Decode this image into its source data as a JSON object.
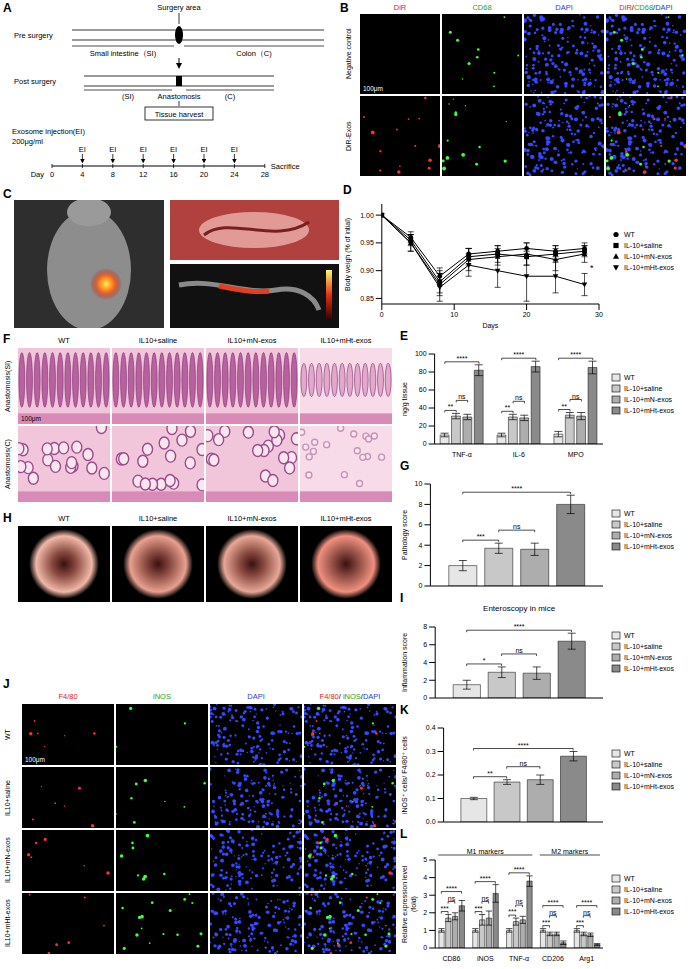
{
  "panels": {
    "A": {
      "label": "A",
      "surgery_area": "Surgery area",
      "pre_surgery": "Pre surgery",
      "small_intestine": "Small intestine（SI)",
      "colon": "Colon（C)",
      "post_surgery": "Post surgery",
      "si": "(SI)",
      "c": "(C)",
      "anastomosis": "Anastomosis",
      "tissue_harvest": "Tissue harvest",
      "injection": "Exosome injection(EI)",
      "dose": "200μg/ml",
      "ei": "EI",
      "day_label": "Day",
      "days": [
        0,
        4,
        8,
        12,
        16,
        20,
        24,
        28
      ],
      "sacrifice": "Sacrifice"
    },
    "B": {
      "label": "B",
      "columns": [
        "DiR",
        "CD68",
        "DAPI",
        "DiR/CD68/DAPI"
      ],
      "rows": [
        "Negative control",
        "DiR-Exos"
      ],
      "scale_bar": "100μm"
    },
    "C": {
      "label": "C"
    },
    "F": {
      "label": "F",
      "columns": [
        "WT",
        "IL10+saline",
        "IL10+mN-exos",
        "IL10+mHt-exos"
      ],
      "rows": [
        "Anastomosis(SI)",
        "Anastomosis(C)"
      ],
      "scale_bar": "100μm"
    },
    "H": {
      "label": "H",
      "columns": [
        "WT",
        "IL10+saline",
        "IL10+mN-exos",
        "IL10+mHt-exos"
      ]
    },
    "J": {
      "label": "J",
      "columns": [
        "F4/80",
        "iNOS",
        "DAPI",
        "F4/80/ iNOS/DAPI"
      ],
      "rows": [
        "WT",
        "IL10+saline",
        "IL10+mN-exos",
        "IL10+mHt-exos"
      ],
      "scale_bar": "100μm"
    }
  },
  "chart_data": [
    {
      "panel": "D",
      "type": "line",
      "x_label": "Days",
      "y_label": "Body weigh (% of intial)",
      "x": [
        0,
        4,
        8,
        12,
        16,
        20,
        24,
        28
      ],
      "xlim": [
        0,
        30
      ],
      "xticks": [
        0,
        10,
        20,
        30
      ],
      "ylim": [
        0.84,
        1.02
      ],
      "yticks": [
        0.85,
        {
          "value": 0.9,
          "label": "0.90"
        },
        0.95,
        {
          "value": 1,
          "label": "1.00"
        }
      ],
      "legend": "right",
      "series": [
        {
          "name": "WT",
          "color": "#000000",
          "marker": "circle",
          "line_style": "solid",
          "values": [
            1.0,
            0.96,
            0.89,
            0.93,
            0.935,
            0.94,
            0.935,
            0.94
          ],
          "errors": [
            0,
            0.01,
            0.015,
            0.01,
            0.01,
            0.01,
            0.01,
            0.01
          ]
        },
        {
          "name": "IL-10+saline",
          "color": "#000000",
          "marker": "square",
          "line_style": "solid",
          "values": [
            1.0,
            0.955,
            0.88,
            0.925,
            0.93,
            0.925,
            0.93,
            0.935
          ],
          "errors": [
            0,
            0.01,
            0.02,
            0.015,
            0.015,
            0.015,
            0.015,
            0.01
          ]
        },
        {
          "name": "IL-10+mN-exos",
          "color": "#000000",
          "marker": "triangle",
          "line_style": "solid",
          "values": [
            1.0,
            0.95,
            0.875,
            0.92,
            0.925,
            0.93,
            0.92,
            0.93
          ],
          "errors": [
            0,
            0.015,
            0.02,
            0.02,
            0.015,
            0.02,
            0.02,
            0.015
          ]
        },
        {
          "name": "IL-10+mHt-exos",
          "color": "#000000",
          "marker": "triangle_down",
          "line_style": "solid",
          "values": [
            1.0,
            0.95,
            0.87,
            0.91,
            0.9,
            0.89,
            0.89,
            0.875
          ],
          "errors": [
            0,
            0.015,
            0.025,
            0.02,
            0.03,
            0.045,
            0.03,
            0.02
          ]
        }
      ],
      "annotations": [
        {
          "x": 29,
          "y": 0.905,
          "text": "*"
        }
      ]
    },
    {
      "panel": "E",
      "type": "bar",
      "y_label": "ng/g tissue",
      "categories": [
        "TNF-α",
        "IL-6",
        "MPO"
      ],
      "ylim": [
        0,
        100
      ],
      "yticks": [
        0,
        20,
        40,
        60,
        80,
        100
      ],
      "legend": "right",
      "series": [
        {
          "name": "WT",
          "color": "#e6e6e6",
          "values": [
            10,
            10,
            11
          ],
          "errors": [
            2,
            2,
            3
          ]
        },
        {
          "name": "IL-10+saline",
          "color": "#c8c8c8",
          "values": [
            31,
            30,
            32
          ],
          "errors": [
            3,
            3,
            3
          ]
        },
        {
          "name": "IL-10+mN-exos",
          "color": "#adadad",
          "values": [
            30,
            29,
            31
          ],
          "errors": [
            3,
            3,
            4
          ]
        },
        {
          "name": "IL-10+mHt-exos",
          "color": "#8a8a8a",
          "values": [
            82,
            86,
            85
          ],
          "errors": [
            6,
            6,
            7
          ]
        }
      ],
      "comparisons": [
        {
          "category": "TNF-α",
          "pair": [
            "WT",
            "IL-10+saline"
          ],
          "text": "**"
        },
        {
          "category": "TNF-α",
          "pair": [
            "IL-10+saline",
            "IL-10+mN-exos"
          ],
          "text": "ns"
        },
        {
          "category": "TNF-α",
          "pair": [
            "WT",
            "IL-10+mHt-exos"
          ],
          "text": "****"
        },
        {
          "category": "IL-6",
          "pair": [
            "WT",
            "IL-10+saline"
          ],
          "text": "**"
        },
        {
          "category": "IL-6",
          "pair": [
            "IL-10+saline",
            "IL-10+mN-exos"
          ],
          "text": "ns"
        },
        {
          "category": "IL-6",
          "pair": [
            "WT",
            "IL-10+mHt-exos"
          ],
          "text": "****"
        },
        {
          "category": "MPO",
          "pair": [
            "WT",
            "IL-10+saline"
          ],
          "text": "**"
        },
        {
          "category": "MPO",
          "pair": [
            "IL-10+saline",
            "IL-10+mN-exos"
          ],
          "text": "ns"
        },
        {
          "category": "MPO",
          "pair": [
            "WT",
            "IL-10+mHt-exos"
          ],
          "text": "****"
        }
      ]
    },
    {
      "panel": "G",
      "type": "bar",
      "y_label": "Pathology score",
      "tick_labels": "y",
      "ylim": [
        0,
        10
      ],
      "yticks": [
        0,
        2,
        4,
        6,
        8,
        10
      ],
      "legend": "right",
      "series": [
        {
          "name": "WT",
          "color": "#e6e6e6",
          "values": [
            2.0
          ],
          "errors": [
            0.5
          ]
        },
        {
          "name": "IL-10+saline",
          "color": "#c8c8c8",
          "values": [
            3.7
          ],
          "errors": [
            0.5
          ]
        },
        {
          "name": "IL-10+mN-exos",
          "color": "#adadad",
          "values": [
            3.6
          ],
          "errors": [
            0.6
          ]
        },
        {
          "name": "IL-10+mHt-exos",
          "color": "#8a8a8a",
          "values": [
            8.0
          ],
          "errors": [
            0.9
          ]
        }
      ],
      "comparisons": [
        {
          "pair": [
            "WT",
            "IL-10+saline"
          ],
          "text": "***"
        },
        {
          "pair": [
            "IL-10+saline",
            "IL-10+mN-exos"
          ],
          "text": "ns"
        },
        {
          "pair": [
            "WT",
            "IL-10+mHt-exos"
          ],
          "text": "****"
        }
      ]
    },
    {
      "panel": "I",
      "type": "bar",
      "title": "Enteroscopy in mice",
      "y_label": "Inflammation score",
      "tick_labels": "y",
      "ylim": [
        0,
        8
      ],
      "yticks": [
        0,
        2,
        4,
        6,
        8
      ],
      "legend": "right",
      "series": [
        {
          "name": "WT",
          "color": "#e6e6e6",
          "values": [
            1.5
          ],
          "errors": [
            0.5
          ]
        },
        {
          "name": "IL-10+saline",
          "color": "#c8c8c8",
          "values": [
            2.9
          ],
          "errors": [
            0.6
          ]
        },
        {
          "name": "IL-10+mN-exos",
          "color": "#adadad",
          "values": [
            2.8
          ],
          "errors": [
            0.7
          ]
        },
        {
          "name": "IL-10+mHt-exos",
          "color": "#8a8a8a",
          "values": [
            6.4
          ],
          "errors": [
            0.9
          ]
        }
      ],
      "comparisons": [
        {
          "pair": [
            "WT",
            "IL-10+saline"
          ],
          "text": "*"
        },
        {
          "pair": [
            "IL-10+saline",
            "IL-10+mN-exos"
          ],
          "text": "ns"
        },
        {
          "pair": [
            "WT",
            "IL-10+mHt-exos"
          ],
          "text": "****"
        }
      ]
    },
    {
      "panel": "K",
      "type": "bar",
      "y_label": "iNOS⁺ cells/ F4/80⁺ cells",
      "tick_labels": "y",
      "ylim": [
        0,
        0.4
      ],
      "yticks": [
        {
          "value": 0,
          "label": "0.0"
        },
        0.1,
        0.2,
        0.3,
        0.4
      ],
      "legend": "right",
      "series": [
        {
          "name": "WT",
          "color": "#e6e6e6",
          "values": [
            0.1
          ],
          "errors": [
            0.005
          ]
        },
        {
          "name": "IL-10+saline",
          "color": "#c8c8c8",
          "values": [
            0.17
          ],
          "errors": [
            0.01
          ]
        },
        {
          "name": "IL-10+mN-exos",
          "color": "#adadad",
          "values": [
            0.18
          ],
          "errors": [
            0.02
          ]
        },
        {
          "name": "IL-10+mHt-exos",
          "color": "#8a8a8a",
          "values": [
            0.28
          ],
          "errors": [
            0.02
          ]
        }
      ],
      "comparisons": [
        {
          "pair": [
            "WT",
            "IL-10+saline"
          ],
          "text": "**"
        },
        {
          "pair": [
            "IL-10+saline",
            "IL-10+mN-exos"
          ],
          "text": "ns"
        },
        {
          "pair": [
            "WT",
            "IL-10+mHt-exos"
          ],
          "text": "****"
        }
      ]
    },
    {
      "panel": "L",
      "type": "bar",
      "y_label": "Relative expression level (fold)",
      "categories": [
        "CD86",
        "iNOS",
        "TNF-α",
        "CD206",
        "Arg1"
      ],
      "ylim": [
        0,
        5
      ],
      "yticks": [
        0,
        1,
        2,
        3,
        4,
        5
      ],
      "legend": "right",
      "groups": [
        {
          "text": "M1 markers",
          "categories": [
            "CD86",
            "iNOS",
            "TNF-α"
          ]
        },
        {
          "text": "M2 markers",
          "categories": [
            "CD206",
            "Arg1"
          ]
        }
      ],
      "series": [
        {
          "name": "WT",
          "color": "#e6e6e6",
          "values": [
            1,
            1,
            1,
            1,
            1
          ],
          "errors": [
            0.1,
            0.1,
            0.1,
            0.1,
            0.1
          ]
        },
        {
          "name": "IL-10+saline",
          "color": "#c8c8c8",
          "values": [
            1.7,
            1.6,
            1.5,
            0.8,
            0.8
          ],
          "errors": [
            0.2,
            0.3,
            0.2,
            0.1,
            0.1
          ]
        },
        {
          "name": "IL-10+mN-exos",
          "color": "#adadad",
          "values": [
            1.8,
            1.7,
            1.6,
            0.8,
            0.75
          ],
          "errors": [
            0.2,
            0.4,
            0.2,
            0.1,
            0.1
          ]
        },
        {
          "name": "IL-10+mHt-exos",
          "color": "#8a8a8a",
          "values": [
            2.4,
            3.1,
            3.8,
            0.3,
            0.2
          ],
          "errors": [
            0.3,
            0.5,
            0.3,
            0.1,
            0.05
          ]
        }
      ],
      "comparisons": [
        {
          "category": "CD86",
          "pair": [
            "WT",
            "IL-10+saline"
          ],
          "text": "***"
        },
        {
          "category": "CD86",
          "pair": [
            "IL-10+saline",
            "IL-10+mN-exos"
          ],
          "text": "ns"
        },
        {
          "category": "CD86",
          "pair": [
            "WT",
            "IL-10+mHt-exos"
          ],
          "text": "****"
        },
        {
          "category": "iNOS",
          "pair": [
            "WT",
            "IL-10+saline"
          ],
          "text": "***"
        },
        {
          "category": "iNOS",
          "pair": [
            "IL-10+saline",
            "IL-10+mN-exos"
          ],
          "text": "ns"
        },
        {
          "category": "iNOS",
          "pair": [
            "WT",
            "IL-10+mHt-exos"
          ],
          "text": "****"
        },
        {
          "category": "TNF-α",
          "pair": [
            "WT",
            "IL-10+saline"
          ],
          "text": "***"
        },
        {
          "category": "TNF-α",
          "pair": [
            "IL-10+saline",
            "IL-10+mN-exos"
          ],
          "text": "ns"
        },
        {
          "category": "TNF-α",
          "pair": [
            "WT",
            "IL-10+mHt-exos"
          ],
          "text": "****"
        },
        {
          "category": "CD206",
          "pair": [
            "WT",
            "IL-10+saline"
          ],
          "text": "***"
        },
        {
          "category": "CD206",
          "pair": [
            "IL-10+saline",
            "IL-10+mN-exos"
          ],
          "text": "ns"
        },
        {
          "category": "CD206",
          "pair": [
            "WT",
            "IL-10+mHt-exos"
          ],
          "text": "****"
        },
        {
          "category": "Arg1",
          "pair": [
            "WT",
            "IL-10+saline"
          ],
          "text": "***"
        },
        {
          "category": "Arg1",
          "pair": [
            "IL-10+saline",
            "IL-10+mN-exos"
          ],
          "text": "ns"
        },
        {
          "category": "Arg1",
          "pair": [
            "WT",
            "IL-10+mHt-exos"
          ],
          "text": "****"
        }
      ]
    }
  ]
}
